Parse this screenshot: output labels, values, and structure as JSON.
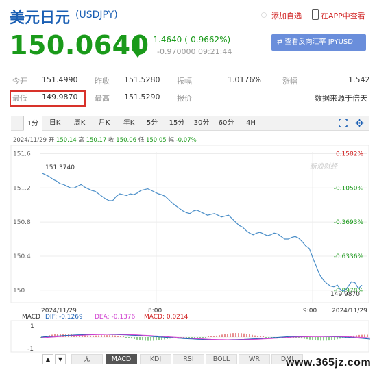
{
  "header": {
    "title": "美元日元",
    "ticker": "(USDJPY)",
    "add_favorite": "添加自选",
    "view_in_app": "在APP中查看"
  },
  "quote": {
    "price": "150.0640",
    "change": "-1.4640 (-0.9662%)",
    "sub_change": "-0.970000  09:21:44",
    "converter_button": "⇄ 查看反向汇率 JPYUSD"
  },
  "stats": {
    "row1": [
      {
        "label": "今开",
        "value": "151.4990"
      },
      {
        "label": "昨收",
        "value": "151.5280"
      },
      {
        "label": "振幅",
        "value": "1.0176%"
      },
      {
        "label": "涨幅",
        "value": "1.542"
      }
    ],
    "row2": [
      {
        "label": "最低",
        "value": "149.9870"
      },
      {
        "label": "最高",
        "value": "151.5290"
      },
      {
        "label": "报价",
        "value": ""
      },
      {
        "label": "",
        "value": "数据来源于倍天"
      }
    ]
  },
  "tabs": [
    "1分",
    "日K",
    "周K",
    "月K",
    "年K",
    "5分",
    "15分",
    "30分",
    "60分",
    "4H"
  ],
  "active_tab": "1分",
  "ohlc": {
    "date": "2024/11/29",
    "open_label": "开",
    "open": "150.14",
    "high_label": "高",
    "high": "150.17",
    "close_label": "收",
    "close": "150.06",
    "low_label": "低",
    "low": "150.05",
    "chg_label": "幅",
    "chg": "-0.07%"
  },
  "chart_data": {
    "type": "line",
    "y_ticks": [
      "151.6",
      "151.2",
      "150.8",
      "150.4",
      "150"
    ],
    "y_right_ticks": [
      {
        "value": 151.6,
        "label": "0.1582%",
        "color": "#d02020"
      },
      {
        "value": 151.2,
        "label": "-0.1050%",
        "color": "#1a9a1a"
      },
      {
        "value": 150.8,
        "label": "-0.3693%",
        "color": "#1a9a1a"
      },
      {
        "value": 150.4,
        "label": "-0.6336%",
        "color": "#1a9a1a"
      },
      {
        "value": 150.0,
        "label": "-0.8978%",
        "color": "#1a9a1a"
      }
    ],
    "x_labels": [
      "2024/11/29",
      "8:00",
      "9:00",
      "2024/11/29"
    ],
    "ylim": [
      149.95,
      151.62
    ],
    "high_annotation": "151.3740",
    "low_annotation": "149.9870",
    "watermark": "新浪财经",
    "grid": true,
    "series": [
      {
        "color": "#4a8ec8",
        "values": [
          151.37,
          151.35,
          151.33,
          151.3,
          151.28,
          151.25,
          151.24,
          151.22,
          151.2,
          151.2,
          151.22,
          151.24,
          151.21,
          151.19,
          151.17,
          151.16,
          151.13,
          151.1,
          151.07,
          151.05,
          151.05,
          151.1,
          151.13,
          151.12,
          151.11,
          151.13,
          151.12,
          151.14,
          151.17,
          151.18,
          151.19,
          151.17,
          151.15,
          151.13,
          151.12,
          151.1,
          151.06,
          151.02,
          150.99,
          150.96,
          150.93,
          150.91,
          150.9,
          150.93,
          150.94,
          150.92,
          150.9,
          150.88,
          150.89,
          150.9,
          150.88,
          150.86,
          150.87,
          150.88,
          150.84,
          150.8,
          150.76,
          150.74,
          150.7,
          150.67,
          150.65,
          150.67,
          150.68,
          150.66,
          150.64,
          150.65,
          150.67,
          150.66,
          150.63,
          150.6,
          150.6,
          150.62,
          150.63,
          150.61,
          150.57,
          150.52,
          150.49,
          150.38,
          150.28,
          150.18,
          150.12,
          150.08,
          150.05,
          150.04,
          150.06,
          150.0,
          149.99,
          150.04,
          150.1,
          150.09,
          150.02,
          150.06
        ]
      }
    ]
  },
  "macd": {
    "label": "MACD",
    "dif": "DIF: -0.1269",
    "dea": "DEA: -0.1376",
    "macd": "MACD: 0.0214",
    "axis_top": "1",
    "axis_bottom": "-1",
    "tabs": [
      "无",
      "MACD",
      "KDJ",
      "RSI",
      "BOLL",
      "WR",
      "DMI"
    ],
    "active": "MACD"
  },
  "watermark_site": "www.365jz.com",
  "colors": {
    "title": "#1a5fb4",
    "price_down": "#1a9a1a",
    "up": "#d02020",
    "line": "#4a8ec8",
    "highlight_box": "#d8322a"
  }
}
